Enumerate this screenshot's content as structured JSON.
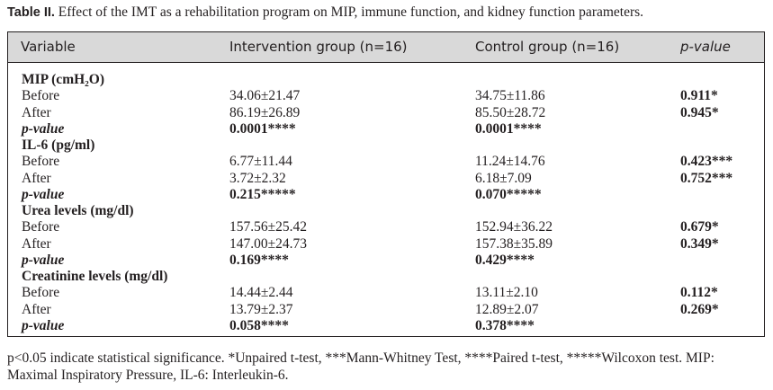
{
  "caption": {
    "label": "Table II.",
    "text": " Effect of the IMT as a rehabilitation program on MIP, immune function, and kidney function parameters."
  },
  "header": {
    "variable": "Variable",
    "intervention": "Intervention group (n=16)",
    "control": "Control group (n=16)",
    "pvalue": "p-value"
  },
  "rows": [
    {
      "kind": "section",
      "variable": "MIP (cmH₂O)",
      "intervention": "",
      "control": "",
      "pvalue": ""
    },
    {
      "kind": "data",
      "variable": "Before",
      "intervention": "34.06±21.47",
      "control": "34.75±11.86",
      "pvalue": "0.911*"
    },
    {
      "kind": "data",
      "variable": "After",
      "intervention": "86.19±26.89",
      "control": "85.50±28.72",
      "pvalue": "0.945*"
    },
    {
      "kind": "pval",
      "variable": "p-value",
      "intervention": "0.0001****",
      "control": "0.0001****",
      "pvalue": ""
    },
    {
      "kind": "section",
      "variable": "IL-6 (pg/ml)",
      "intervention": "",
      "control": "",
      "pvalue": ""
    },
    {
      "kind": "data",
      "variable": "Before",
      "intervention": "6.77±11.44",
      "control": "11.24±14.76",
      "pvalue": "0.423***"
    },
    {
      "kind": "data",
      "variable": "After",
      "intervention": "3.72±2.32",
      "control": "6.18±7.09",
      "pvalue": "0.752***"
    },
    {
      "kind": "pval",
      "variable": "p-value",
      "intervention": "0.215*****",
      "control": "0.070*****",
      "pvalue": ""
    },
    {
      "kind": "section",
      "variable": "Urea levels (mg/dl)",
      "intervention": "",
      "control": "",
      "pvalue": ""
    },
    {
      "kind": "data",
      "variable": "Before",
      "intervention": "157.56±25.42",
      "control": "152.94±36.22",
      "pvalue": "0.679*"
    },
    {
      "kind": "data",
      "variable": "After",
      "intervention": "147.00±24.73",
      "control": "157.38±35.89",
      "pvalue": "0.349*"
    },
    {
      "kind": "pval",
      "variable": "p-value",
      "intervention": "0.169****",
      "control": "0.429****",
      "pvalue": ""
    },
    {
      "kind": "section",
      "variable": "Creatinine levels (mg/dl)",
      "intervention": "",
      "control": "",
      "pvalue": ""
    },
    {
      "kind": "data",
      "variable": "Before",
      "intervention": "14.44±2.44",
      "control": "13.11±2.10",
      "pvalue": "0.112*"
    },
    {
      "kind": "data",
      "variable": "After",
      "intervention": "13.79±2.37",
      "control": "12.89±2.07",
      "pvalue": "0.269*"
    },
    {
      "kind": "pval",
      "variable": "p-value",
      "intervention": "0.058****",
      "control": "0.378****",
      "pvalue": ""
    }
  ],
  "footnote": {
    "line1": "p<0.05 indicate statistical significance. *Unpaired t-test, ***Mann-Whitney Test,  ****Paired t-test, *****Wilcoxon test. MIP:",
    "line2": "Maximal Inspiratory Pressure, IL-6: Interleukin-6."
  },
  "colors": {
    "header_bg": "#d9d9d9",
    "text": "#231f20",
    "border": "#231f20"
  }
}
